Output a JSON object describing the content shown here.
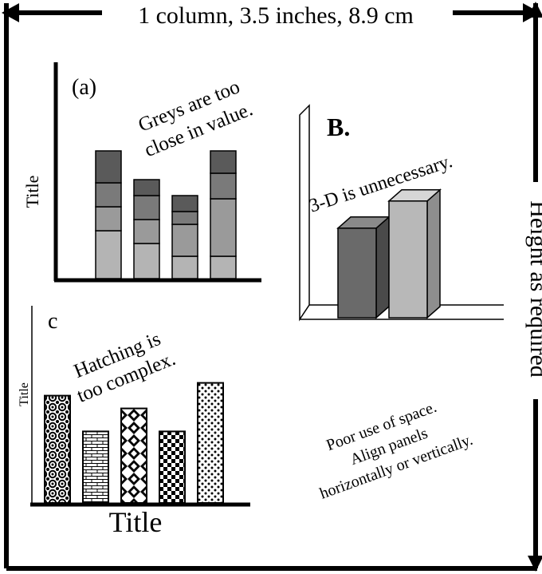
{
  "header": {
    "width_label": "1 column, 3.5 inches, 8.9 cm"
  },
  "side": {
    "height_label": "Height as required"
  },
  "panel_a": {
    "label": "(a)",
    "y_title": "Title",
    "note_line1": "Greys are too",
    "note_line2": "close in value.",
    "fill_colors": [
      "#b4b4b4",
      "#9a9a9a",
      "#7a7a7a",
      "#5a5a5a"
    ],
    "stacks": [
      [
        3,
        1.5,
        1.5,
        2
      ],
      [
        2.2,
        1.5,
        1.5,
        1
      ],
      [
        1.4,
        2,
        0.8,
        1
      ],
      [
        1.4,
        3.6,
        1.6,
        1.4
      ]
    ]
  },
  "panel_b": {
    "label": "B.",
    "note": "3-D is unnecessary.",
    "bar_colors": [
      "#6a6a6a",
      "#b8b8b8"
    ],
    "bars": [
      6.6,
      8.6
    ]
  },
  "panel_c": {
    "label": "c",
    "y_title": "Title",
    "x_title": "Title",
    "note_line1": "Hatching is",
    "note_line2": "too complex.",
    "bars": [
      {
        "value": 8.4,
        "pattern": "circles"
      },
      {
        "value": 5.6,
        "pattern": "brick"
      },
      {
        "value": 7.4,
        "pattern": "diamonds"
      },
      {
        "value": 5.6,
        "pattern": "checker"
      },
      {
        "value": 9.4,
        "pattern": "dots"
      }
    ]
  },
  "advice": {
    "line1": "Poor use of space.",
    "line2": "Align panels",
    "line3": "horizontally or vertically."
  }
}
